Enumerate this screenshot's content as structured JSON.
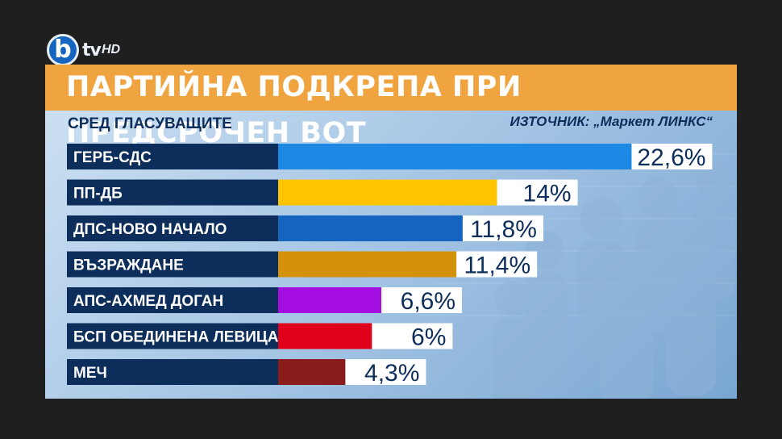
{
  "logo": {
    "b": "b",
    "tv": "tv",
    "hd": "HD"
  },
  "title": "ПАРТИЙНА ПОДКРЕПА ПРИ ПРЕДСРОЧЕН ВОТ",
  "subtitle": "СРЕД ГЛАСУВАЩИТЕ",
  "source": "ИЗТОЧНИК: „Маркет ЛИНКС“",
  "chart_data": {
    "type": "bar",
    "orientation": "horizontal",
    "categories": [
      "ГЕРБ-СДС",
      "ПП-ДБ",
      "ДПС-НОВО НАЧАЛО",
      "ВЪЗРАЖДАНЕ",
      "АПС-АХМЕД ДОГАН",
      "БСП ОБЕДИНЕНА ЛЕВИЦА",
      "МЕЧ"
    ],
    "values": [
      22.6,
      14,
      11.8,
      11.4,
      6.6,
      6,
      4.3
    ],
    "value_labels": [
      "22,6%",
      "14%",
      "11,8%",
      "11,4%",
      "6,6%",
      "6%",
      "4,3%"
    ],
    "colors": [
      "#1e88e5",
      "#ffc400",
      "#1565c0",
      "#d4920a",
      "#a40ee0",
      "#e0001b",
      "#8b1c1c"
    ],
    "title": "ПАРТИЙНА ПОДКРЕПА ПРИ ПРЕДСРОЧЕН ВОТ",
    "grid": false
  }
}
